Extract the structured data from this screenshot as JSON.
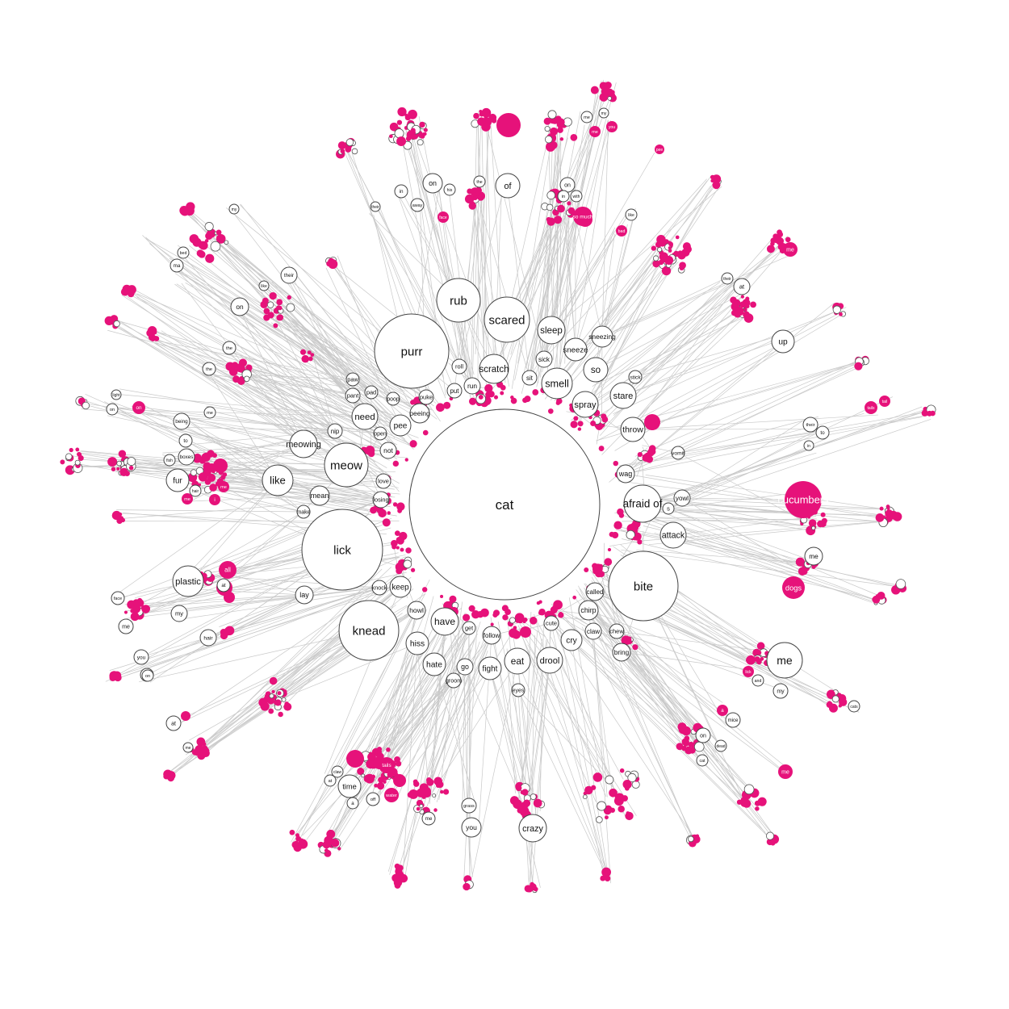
{
  "colors": {
    "accent": "#e6127a",
    "edge": "#c9c9c9",
    "node_stroke": "#444444"
  },
  "root": "cat",
  "primary": [
    "purr",
    "rub",
    "scared",
    "sleep",
    "scratch",
    "sneeze",
    "sneezing",
    "sick",
    "roll",
    "run",
    "put",
    "sit",
    "smell",
    "so",
    "stare",
    "stick",
    "spray",
    "throw",
    "vomit",
    "wag",
    "yowl",
    "afraid of",
    "s",
    "attack",
    "bite",
    "called",
    "chirp",
    "chew",
    "claw",
    "bring",
    "cry",
    "drool",
    "eat",
    "fight",
    "eyes",
    "follow",
    "cute",
    "get",
    "groom",
    "go",
    "hate",
    "hiss",
    "have",
    "howl",
    "keep",
    "knock",
    "knead",
    "lick",
    "lay",
    "like",
    "meow",
    "meowing",
    "mean",
    "make",
    "nip",
    "not",
    "need",
    "pee",
    "peeing",
    "open",
    "love",
    "losing",
    "pant",
    "pad",
    "poop",
    "puke",
    "paw"
  ],
  "outer": [
    "of",
    "on",
    "in",
    "his",
    "their",
    "away",
    "face",
    "the",
    "on",
    "in",
    "with",
    "so much",
    "my",
    "me",
    "you",
    "me",
    "pee",
    "like",
    "bad",
    "me",
    "their",
    "at",
    "up",
    "their",
    "to",
    "in",
    "tails",
    "tail",
    "cucumbers",
    "me",
    "dogs",
    "me",
    "my",
    "and",
    "lick",
    "cats",
    "a",
    "mice",
    "on",
    "dead",
    "cat",
    "me",
    "you",
    "grass",
    "crazy",
    "me",
    "tails",
    "water",
    "at",
    "a",
    "claw",
    "time",
    "off",
    "at",
    "me",
    "my",
    "you",
    "on",
    "hair",
    "face",
    "me",
    "you",
    "my",
    "plastic",
    "all",
    "at",
    "me",
    "being",
    "to",
    "boxes",
    "fish",
    "fur",
    "hair",
    "me",
    "i",
    "me",
    "light",
    "on",
    "on",
    "on",
    "their",
    "like",
    "the",
    "the",
    "my",
    "bed",
    "ma"
  ]
}
